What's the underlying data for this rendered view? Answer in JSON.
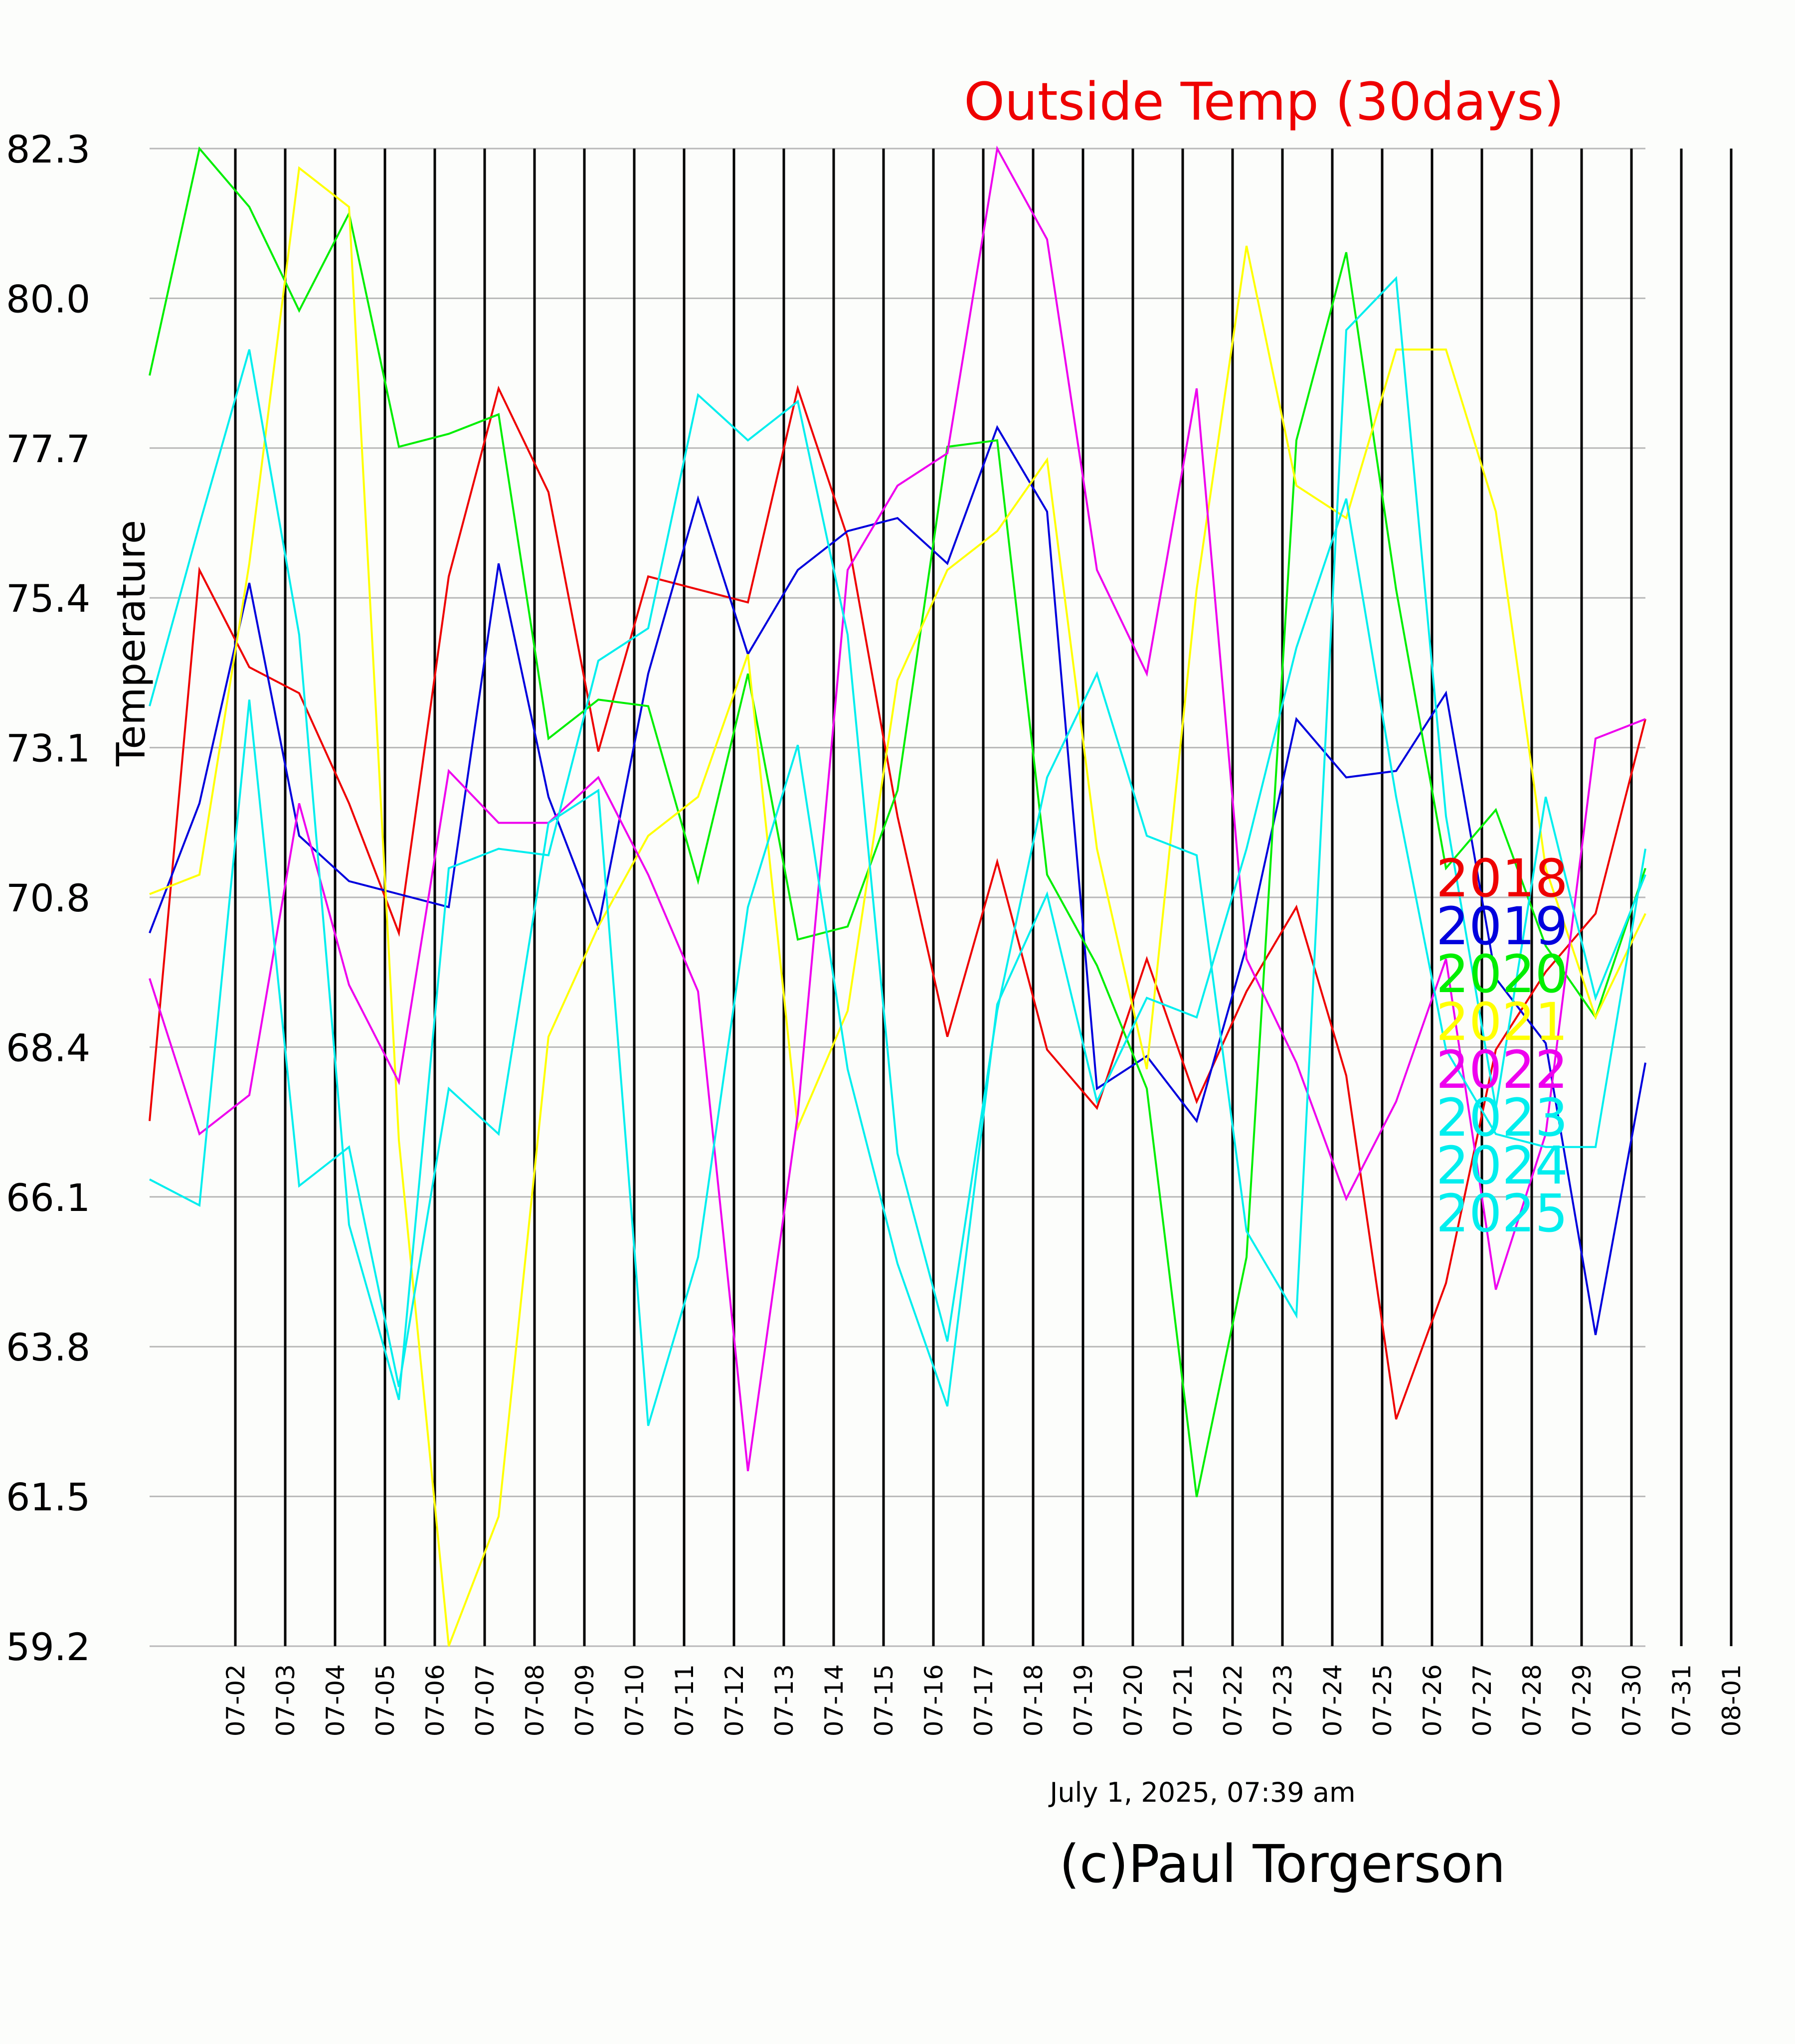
{
  "chart_data": {
    "type": "line",
    "title": "Outside Temp (30days)",
    "ylabel": "Temperature",
    "xlabel": "",
    "timestamp": "July 1, 2025, 07:39 am",
    "credit": "(c)Paul Torgerson",
    "ylim": [
      59.2,
      82.3
    ],
    "yticks": [
      "82.3",
      "80.0",
      "77.7",
      "75.4",
      "73.1",
      "70.8",
      "68.4",
      "66.1",
      "63.8",
      "61.5",
      "59.2"
    ],
    "xticks": [
      "07-02",
      "07-03",
      "07-04",
      "07-05",
      "07-06",
      "07-07",
      "07-08",
      "07-09",
      "07-10",
      "07-11",
      "07-12",
      "07-13",
      "07-14",
      "07-15",
      "07-16",
      "07-17",
      "07-18",
      "07-19",
      "07-20",
      "07-21",
      "07-22",
      "07-23",
      "07-24",
      "07-25",
      "07-26",
      "07-27",
      "07-28",
      "07-29",
      "07-30",
      "07-31",
      "08-01"
    ],
    "grid": "on",
    "legend": "right",
    "series": [
      {
        "name": "2018",
        "color": "#ee0000",
        "values": [
          67.3,
          75.8,
          74.3,
          73.9,
          72.2,
          70.2,
          75.7,
          78.6,
          77.0,
          73.0,
          75.7,
          75.5,
          75.3,
          78.6,
          76.3,
          72.0,
          68.6,
          71.3,
          68.4,
          67.5,
          69.8,
          67.6,
          69.3,
          70.6,
          68.0,
          62.7,
          64.8,
          68.4,
          69.6,
          70.5,
          73.5
        ]
      },
      {
        "name": "2019",
        "color": "#0000dd",
        "values": [
          70.2,
          72.2,
          75.6,
          71.7,
          71.0,
          70.8,
          70.6,
          75.9,
          72.3,
          70.3,
          74.2,
          76.9,
          74.5,
          75.8,
          76.4,
          76.6,
          75.9,
          78.0,
          76.7,
          67.8,
          68.3,
          67.3,
          70.0,
          73.5,
          72.6,
          72.7,
          73.9,
          69.5,
          68.5,
          64.0,
          68.2
        ]
      },
      {
        "name": "2020",
        "color": "#00ee00",
        "values": [
          78.8,
          82.3,
          81.4,
          79.8,
          81.3,
          77.7,
          77.9,
          78.2,
          73.2,
          73.8,
          73.7,
          71.0,
          74.2,
          70.1,
          70.3,
          72.4,
          77.7,
          77.8,
          71.1,
          69.7,
          67.8,
          61.5,
          65.2,
          77.8,
          80.7,
          75.5,
          71.2,
          72.1,
          70.0,
          68.9,
          71.2
        ]
      },
      {
        "name": "2021",
        "color": "#ffff00",
        "values": [
          70.8,
          71.1,
          75.9,
          82.0,
          81.4,
          67.0,
          59.2,
          61.2,
          68.6,
          70.3,
          71.7,
          72.3,
          74.5,
          67.2,
          69.0,
          74.1,
          75.8,
          76.4,
          77.5,
          71.5,
          68.1,
          75.5,
          80.8,
          77.1,
          76.6,
          79.2,
          79.2,
          76.7,
          71.2,
          68.9,
          70.5
        ]
      },
      {
        "name": "2022",
        "color": "#ee00ee",
        "values": [
          69.5,
          67.1,
          67.7,
          72.2,
          69.4,
          67.9,
          72.7,
          71.9,
          71.9,
          72.6,
          71.1,
          69.3,
          61.9,
          67.4,
          75.8,
          77.1,
          77.6,
          82.3,
          80.9,
          75.8,
          74.2,
          78.6,
          69.8,
          68.2,
          66.1,
          67.6,
          69.8,
          64.7,
          67.1,
          73.2,
          73.5
        ]
      },
      {
        "name": "2023",
        "color": "#00eeee",
        "values": [
          66.4,
          66.0,
          73.8,
          66.3,
          66.9,
          63.2,
          67.8,
          67.1,
          71.9,
          72.4,
          62.6,
          65.2,
          70.6,
          73.1,
          68.1,
          65.1,
          62.9,
          69.1,
          70.8,
          67.6,
          69.2,
          68.9,
          71.5,
          74.6,
          76.9,
          72.3,
          68.4,
          67.1,
          66.9,
          66.9,
          71.5
        ]
      },
      {
        "name": "2024",
        "color": "#00eeee",
        "values": [
          73.7,
          76.5,
          79.2,
          74.8,
          65.7,
          63.0,
          71.2,
          71.5,
          71.4,
          74.4,
          74.9,
          78.5,
          77.8,
          78.4,
          74.8,
          66.8,
          63.9,
          69.0,
          72.6,
          74.2,
          71.7,
          71.4,
          65.6,
          64.3,
          79.5,
          80.3,
          72.0,
          67.5,
          72.3,
          69.2,
          71.1
        ]
      },
      {
        "name": "2025",
        "color": "#00eeee",
        "values": [
          null,
          null,
          null,
          null,
          null,
          null,
          null,
          null,
          null,
          null,
          null,
          null,
          null,
          null,
          null,
          null,
          null,
          null,
          null,
          null,
          null,
          null,
          null,
          null,
          null,
          null,
          null,
          null,
          null,
          null,
          null
        ]
      }
    ]
  }
}
